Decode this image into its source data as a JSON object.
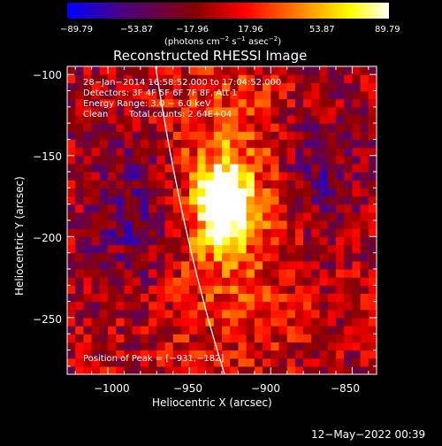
{
  "colorbar": {
    "ticks": [
      "−89.79",
      "−53.87",
      "−17.96",
      "17.96",
      "53.87",
      "89.79"
    ],
    "unit_main": "(photons cm",
    "unit_sup1": "−2",
    "unit_s": " s",
    "unit_sup2": "−1",
    "unit_asec": " asec",
    "unit_sup3": "−2",
    "unit_close": ")"
  },
  "annotations": {
    "time_range": "28−Jan−2014 16:58:52.000 to 17:04:52.000",
    "detectors": "Detectors: 3F 4F 5F 6F 7F 8F, Att 1",
    "energy": "Energy Range: 3.0 − 6.0 keV",
    "method": "Clean",
    "counts": "Total counts: 2.64E+04",
    "peak": "Position of Peak = [−931,−182]"
  },
  "footer": {
    "timestamp": "12−May−2022 00:39"
  },
  "chart_data": {
    "type": "heatmap",
    "title": "Reconstructed RHESSI Image",
    "xlabel": "Heliocentric X (arcsec)",
    "ylabel": "Heliocentric Y (arcsec)",
    "xlim": [
      -1025,
      -835
    ],
    "ylim": [
      -285,
      -95
    ],
    "xticks": [
      -1000,
      -950,
      -900,
      -850
    ],
    "yticks": [
      -100,
      -150,
      -200,
      -250
    ],
    "xtick_labels": [
      "−1000",
      "−950",
      "−900",
      "−850"
    ],
    "ytick_labels": [
      "−100",
      "−150",
      "−200",
      "−250"
    ],
    "value_range": [
      -89.79,
      89.79
    ],
    "colormap": [
      "#0000ff",
      "#4b0082",
      "#8b0000",
      "#ff0000",
      "#ff8000",
      "#ffff00",
      "#ffffff"
    ],
    "peak_position": [
      -931,
      -182
    ],
    "peak_value": 89.79,
    "limb_color": "#ffffff"
  }
}
